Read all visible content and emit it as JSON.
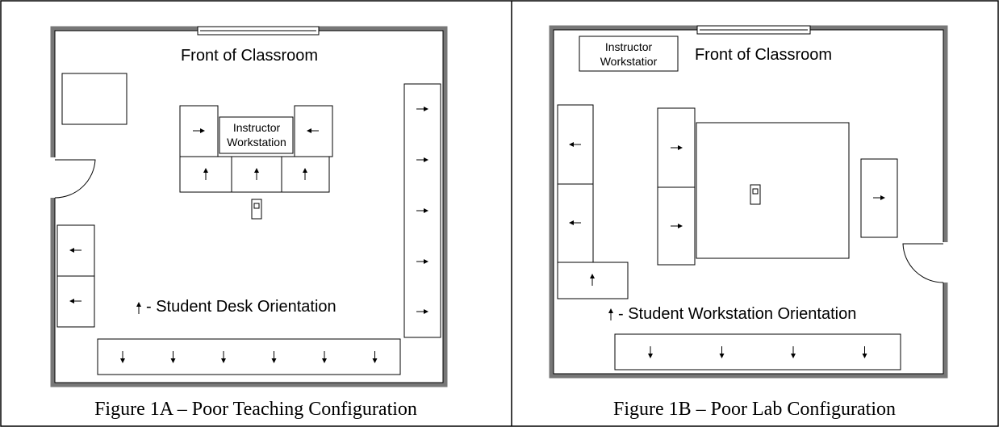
{
  "figure_a": {
    "front_label": "Front of Classroom",
    "instructor_lines": [
      "Instructor",
      "Workstation"
    ],
    "legend": "- Student Desk Orientation",
    "caption": "Figure 1A – Poor Teaching Configuration"
  },
  "figure_b": {
    "front_label": "Front of Classroom",
    "instructor_lines": [
      "Instructor",
      "Workstatior"
    ],
    "legend": "- Student Workstation Orientation",
    "caption": "Figure 1B – Poor Lab Configuration"
  }
}
